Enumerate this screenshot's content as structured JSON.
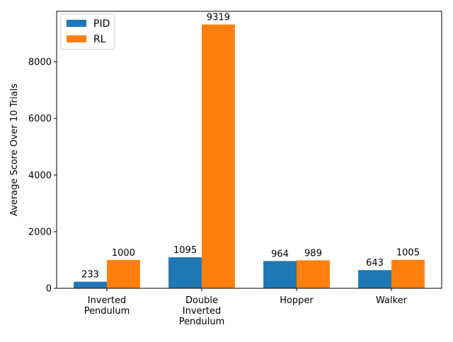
{
  "chart_data": {
    "type": "bar",
    "title": "",
    "xlabel": "",
    "ylabel": "Average Score Over 10 Trials",
    "categories": [
      [
        "Inverted",
        "Pendulum"
      ],
      [
        "Double",
        "Inverted",
        "Pendulum"
      ],
      [
        "Hopper"
      ],
      [
        "Walker"
      ]
    ],
    "series": [
      {
        "name": "PID",
        "color": "#1f77b4",
        "values": [
          233,
          1095,
          964,
          643
        ]
      },
      {
        "name": "RL",
        "color": "#ff7f0e",
        "values": [
          1000,
          9319,
          989,
          1005
        ]
      }
    ],
    "ylim": [
      0,
      9785
    ],
    "yticks": [
      0,
      2000,
      4000,
      6000,
      8000
    ],
    "grid": false,
    "legend_position": "top-left",
    "data_labels": true
  }
}
